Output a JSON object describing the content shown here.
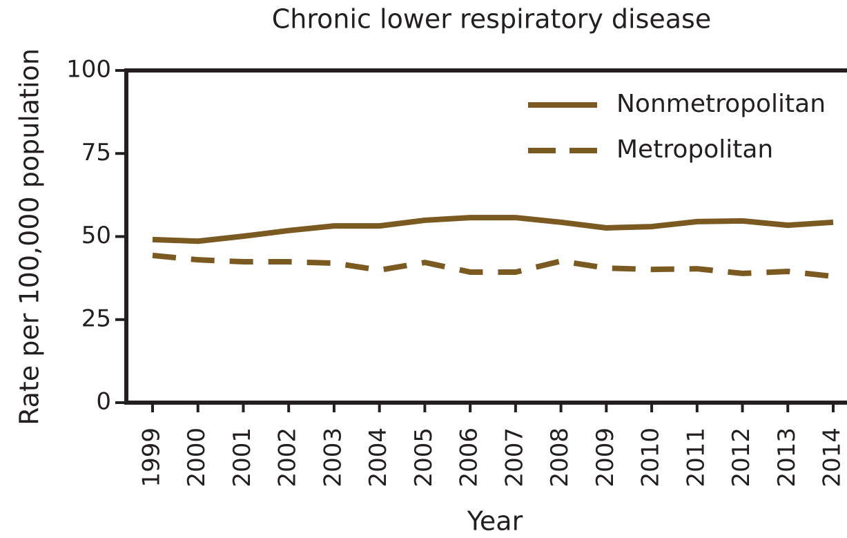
{
  "chart_data": {
    "type": "line",
    "title": "Chronic lower respiratory disease",
    "x_label": "Year",
    "y_label": "Rate per 100,000 population",
    "categories": [
      "1999",
      "2000",
      "2001",
      "2002",
      "2003",
      "2004",
      "2005",
      "2006",
      "2007",
      "2008",
      "2009",
      "2010",
      "2011",
      "2012",
      "2013",
      "2014"
    ],
    "series": [
      {
        "name": "Nonmetropolitan",
        "color": "#7b5a22",
        "dash": "solid",
        "values": [
          49.1,
          48.6,
          50.1,
          51.8,
          53.2,
          53.2,
          54.9,
          55.7,
          55.7,
          54.3,
          52.6,
          53.0,
          54.5,
          54.7,
          53.4,
          54.3
        ]
      },
      {
        "name": "Metropolitan",
        "color": "#7b5a22",
        "dash": "dashed",
        "values": [
          44.3,
          43.0,
          42.4,
          42.4,
          42.0,
          39.9,
          42.2,
          39.3,
          39.3,
          42.6,
          40.5,
          40.1,
          40.3,
          38.9,
          39.5,
          38.0
        ]
      }
    ],
    "ylim": [
      0,
      100
    ],
    "yticks": [
      0,
      25,
      50,
      75,
      100
    ],
    "legend": "upper right"
  }
}
